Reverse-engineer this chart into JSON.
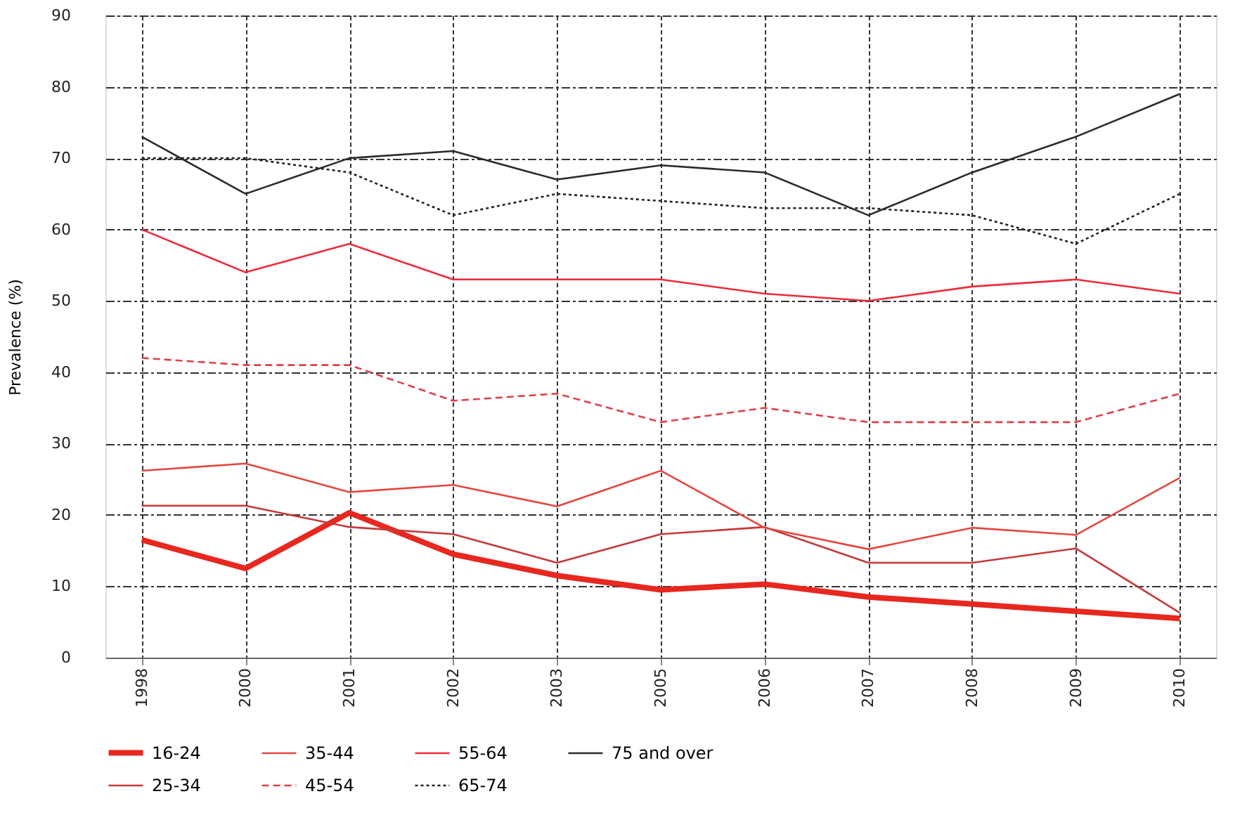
{
  "chart_data": {
    "type": "line",
    "ylabel": "Prevalence (%)",
    "categories": [
      "1998",
      "2000",
      "2001",
      "2002",
      "2003",
      "2005",
      "2006",
      "2007",
      "2008",
      "2009",
      "2010"
    ],
    "series": [
      {
        "name": "16-24",
        "color": "#e8271f",
        "line_style": "solid",
        "values": [
          16.5,
          12.5,
          20.3,
          14.5,
          11.5,
          9.5,
          10.3,
          8.5,
          7.5,
          6.5,
          5.5
        ]
      },
      {
        "name": "25-34",
        "color": "#c4393a",
        "line_style": "solid",
        "values": [
          21.3,
          21.3,
          18.3,
          17.3,
          13.3,
          17.3,
          18.3,
          13.3,
          13.3,
          15.3,
          6.3
        ]
      },
      {
        "name": "35-44",
        "color": "#e4473f",
        "line_style": "solid",
        "values": [
          26.2,
          27.2,
          23.2,
          24.2,
          21.2,
          26.2,
          18.2,
          15.2,
          18.2,
          17.2,
          25.2
        ]
      },
      {
        "name": "45-54",
        "color": "#e0404a",
        "line_style": "dashed",
        "values": [
          42,
          41,
          41,
          36,
          37,
          33,
          35,
          33,
          33,
          33,
          37
        ]
      },
      {
        "name": "55-64",
        "color": "#ee2a3a",
        "line_style": "solid",
        "values": [
          60,
          54,
          58,
          53,
          53,
          53,
          51,
          50,
          52,
          53,
          51
        ]
      },
      {
        "name": "65-74",
        "color": "#222222",
        "line_style": "dotted",
        "values": [
          70,
          70,
          68,
          62,
          65,
          64,
          63,
          63,
          62,
          58,
          65
        ]
      },
      {
        "name": "75 and over",
        "color": "#2a2a2a",
        "line_style": "solid",
        "values": [
          73,
          65,
          70,
          71,
          67,
          69,
          68,
          62,
          68,
          73,
          79
        ]
      }
    ],
    "ylim": [
      0,
      90
    ],
    "yticks": [
      0,
      10,
      20,
      30,
      40,
      50,
      60,
      70,
      80,
      90
    ],
    "grid": true,
    "legend": "bottom"
  }
}
